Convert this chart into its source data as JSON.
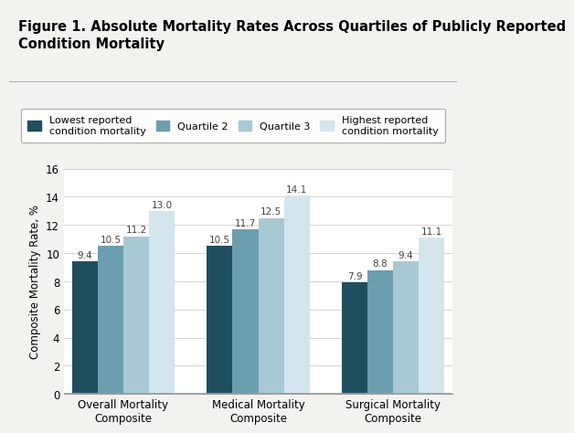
{
  "title_line1": "Figure 1. Absolute Mortality Rates Across Quartiles of Publicly Reported",
  "title_line2": "Condition Mortality",
  "groups": [
    "Overall Mortality\nComposite",
    "Medical Mortality\nComposite",
    "Surgical Mortality\nComposite"
  ],
  "series_labels": [
    "Lowest reported\ncondition mortality",
    "Quartile 2",
    "Quartile 3",
    "Highest reported\ncondition mortality"
  ],
  "values": [
    [
      9.4,
      10.5,
      11.2,
      13.0
    ],
    [
      10.5,
      11.7,
      12.5,
      14.1
    ],
    [
      7.9,
      8.8,
      9.4,
      11.1
    ]
  ],
  "colors": [
    "#1f4e5f",
    "#6b9eae",
    "#a8c8d4",
    "#d4e6ed"
  ],
  "ylabel": "Composite Mortality Rate, %",
  "ylim": [
    0,
    16
  ],
  "yticks": [
    0,
    2,
    4,
    6,
    8,
    10,
    12,
    14,
    16
  ],
  "bar_width": 0.19,
  "background_color": "#f2f2ee",
  "plot_bg_color": "#ffffff",
  "title_fontsize": 10.5,
  "axis_label_fontsize": 8.5,
  "tick_fontsize": 8.5,
  "legend_fontsize": 8,
  "value_label_fontsize": 7.5
}
